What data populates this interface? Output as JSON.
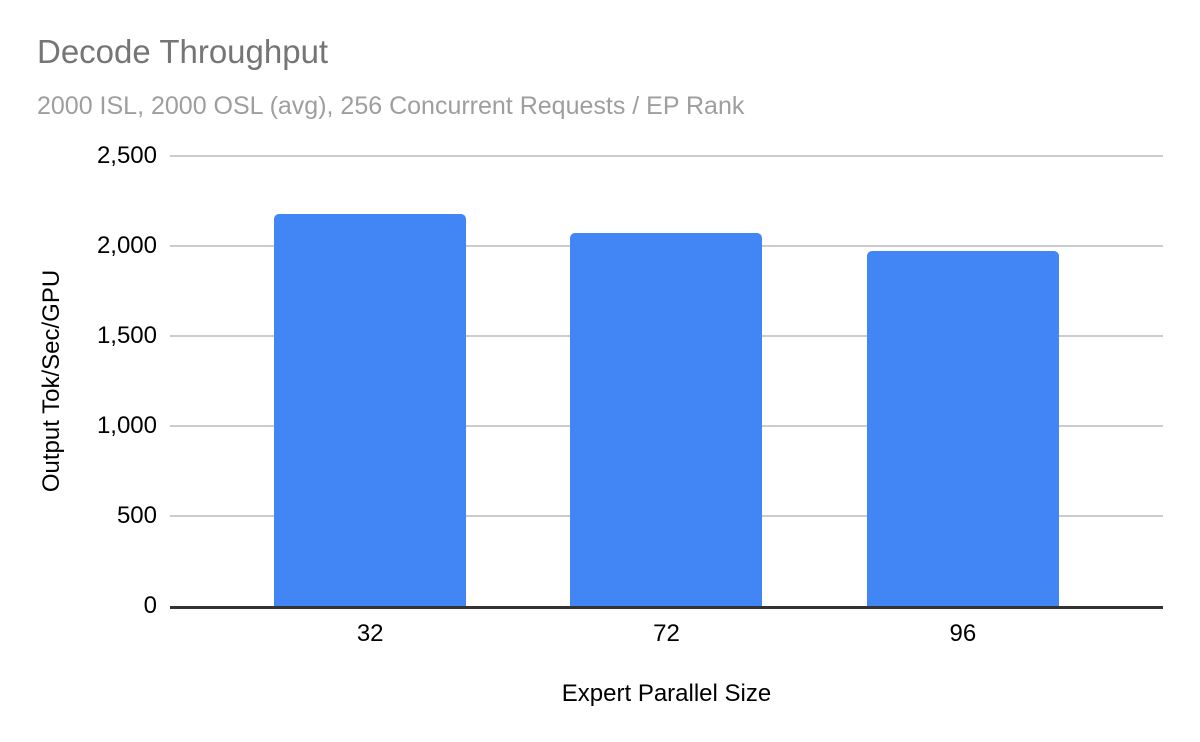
{
  "colors": {
    "bar": "#4285f4",
    "title_text": "#757575",
    "subtitle_text": "#9e9e9e",
    "gridline": "#cccccc",
    "axis_line": "#333333",
    "tick_text": "#000000"
  },
  "chart_data": {
    "type": "bar",
    "title": "Decode Throughput",
    "subtitle": "2000 ISL, 2000 OSL (avg), 256 Concurrent Requests / EP Rank",
    "xlabel": "Expert Parallel Size",
    "ylabel": "Output Tok/Sec/GPU",
    "categories": [
      "32",
      "72",
      "96"
    ],
    "values": [
      2180,
      2070,
      1970
    ],
    "ylim": [
      0,
      2500
    ],
    "ytick_step": 500,
    "ytick_labels": [
      "0",
      "500",
      "1,000",
      "1,500",
      "2,000",
      "2,500"
    ],
    "bar_color": "#4285f4",
    "grid": true,
    "legend_position": "none"
  }
}
